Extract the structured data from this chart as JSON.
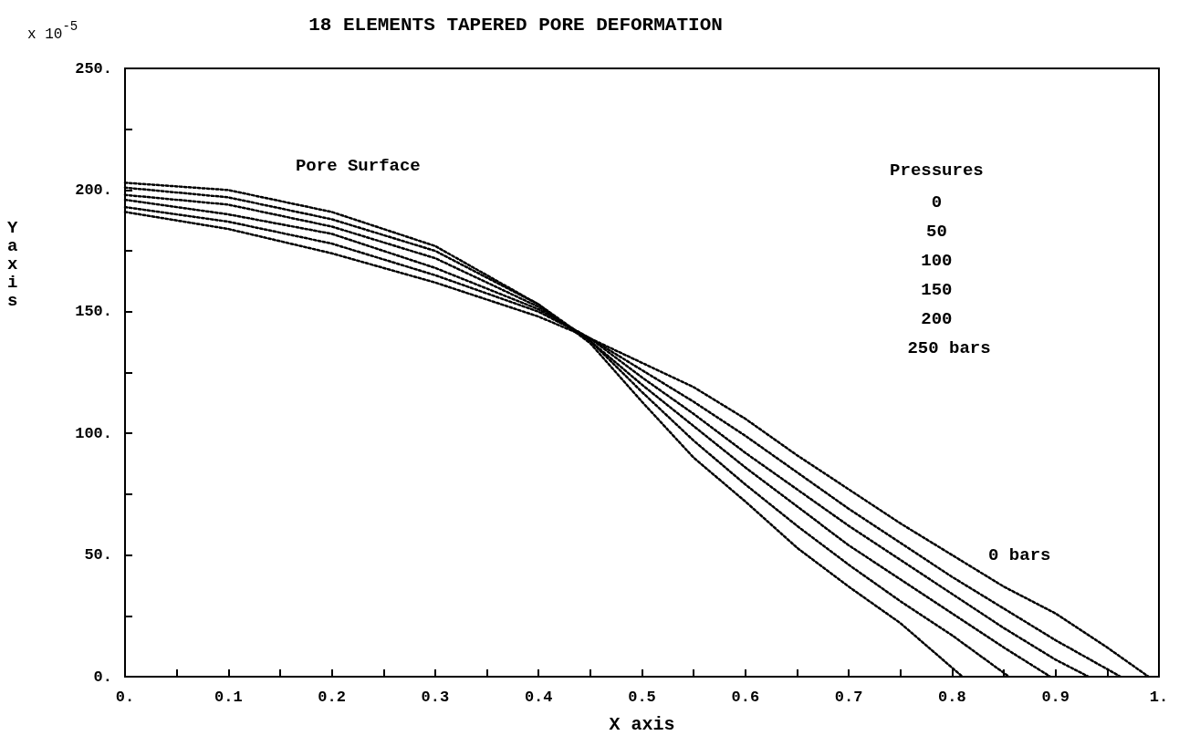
{
  "chart_data": {
    "type": "line",
    "title": "18 ELEMENTS TAPERED PORE DEFORMATION",
    "xlabel": "X axis",
    "ylabel": "Y axis",
    "annotations": [
      "Pore Surface",
      "Pressures",
      "0",
      "50",
      "100",
      "150",
      "200",
      "250 bars",
      "0 bars",
      "x 10$^{-5}$"
    ],
    "xlim": [
      0,
      1
    ],
    "ylim": [
      0,
      250
    ],
    "xticks": [
      {
        "value": 0,
        "label": "0."
      },
      {
        "value": 0.05,
        "label": null
      },
      0.1,
      {
        "value": 0.15,
        "label": null
      },
      0.2,
      {
        "value": 0.25,
        "label": null
      },
      0.3,
      {
        "value": 0.35,
        "label": null
      },
      0.4,
      {
        "value": 0.45,
        "label": null
      },
      0.5,
      {
        "value": 0.55,
        "label": null
      },
      0.6,
      {
        "value": 0.65,
        "label": null
      },
      0.7,
      {
        "value": 0.75,
        "label": null
      },
      0.8,
      {
        "value": 0.85,
        "label": null
      },
      0.9,
      {
        "value": 0.95,
        "label": null
      },
      {
        "value": 1,
        "label": "1."
      }
    ],
    "yticks": [
      {
        "value": 0,
        "label": "0."
      },
      {
        "value": 25,
        "label": null
      },
      {
        "value": 50,
        "label": "50."
      },
      {
        "value": 75,
        "label": null
      },
      {
        "value": 100,
        "label": "100."
      },
      {
        "value": 125,
        "label": null
      },
      {
        "value": 150,
        "label": "150."
      },
      {
        "value": 175,
        "label": null
      },
      {
        "value": 200,
        "label": "200."
      },
      {
        "value": 225,
        "label": null
      },
      {
        "value": 250,
        "label": "250."
      }
    ],
    "grid": false,
    "marker": "none",
    "line_style": "dotted",
    "series": [
      {
        "color": "#000000",
        "x": [
          0,
          0.1,
          0.2,
          0.3,
          0.4,
          0.45,
          0.5,
          0.55,
          0.6,
          0.65,
          0.7,
          0.75,
          0.8,
          0.85,
          0.9,
          0.95,
          0.99
        ],
        "values": [
          191,
          184,
          174,
          162,
          148,
          139,
          129,
          119,
          106,
          91,
          77,
          63,
          50,
          37,
          26,
          12,
          0
        ]
      },
      {
        "color": "#000000",
        "x": [
          0,
          0.1,
          0.2,
          0.3,
          0.4,
          0.45,
          0.5,
          0.55,
          0.6,
          0.65,
          0.7,
          0.75,
          0.8,
          0.85,
          0.9,
          0.963
        ],
        "values": [
          193,
          187,
          178,
          165,
          150,
          139,
          126,
          113,
          99,
          84,
          69,
          55,
          41,
          28,
          15,
          0
        ]
      },
      {
        "color": "#000000",
        "x": [
          0,
          0.1,
          0.2,
          0.3,
          0.4,
          0.45,
          0.5,
          0.55,
          0.6,
          0.65,
          0.7,
          0.75,
          0.8,
          0.85,
          0.9,
          0.932
        ],
        "values": [
          196,
          190,
          182,
          168,
          151,
          139,
          123,
          108,
          92,
          77,
          62,
          48,
          34,
          20,
          7,
          0
        ]
      },
      {
        "color": "#000000",
        "x": [
          0,
          0.1,
          0.2,
          0.3,
          0.4,
          0.45,
          0.5,
          0.55,
          0.6,
          0.65,
          0.7,
          0.75,
          0.8,
          0.85,
          0.895
        ],
        "values": [
          198,
          194,
          185,
          172,
          152,
          138,
          120,
          103,
          86,
          70,
          54,
          40,
          26,
          12,
          0
        ]
      },
      {
        "color": "#000000",
        "x": [
          0,
          0.1,
          0.2,
          0.3,
          0.4,
          0.45,
          0.5,
          0.55,
          0.6,
          0.65,
          0.7,
          0.75,
          0.8,
          0.855
        ],
        "values": [
          201,
          197,
          188,
          175,
          153,
          138,
          117,
          97,
          79,
          62,
          46,
          31,
          17,
          0
        ]
      },
      {
        "color": "#000000",
        "x": [
          0,
          0.1,
          0.2,
          0.3,
          0.4,
          0.45,
          0.5,
          0.55,
          0.6,
          0.65,
          0.7,
          0.75,
          0.81
        ],
        "values": [
          203,
          200,
          191,
          177,
          153,
          137,
          113,
          90,
          72,
          53,
          37,
          22,
          0
        ]
      }
    ]
  }
}
